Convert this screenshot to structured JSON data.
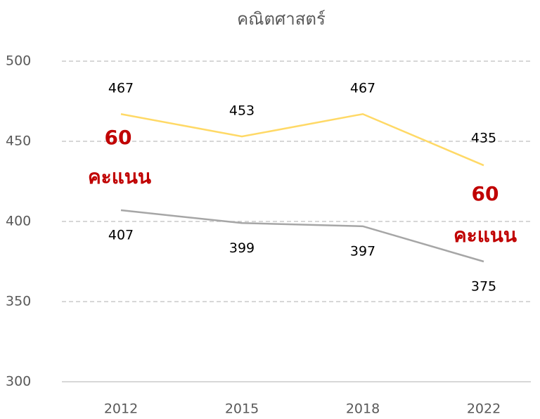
{
  "chart_data": {
    "type": "line",
    "title": "คณิตศาสตร์",
    "categories": [
      "2012",
      "2015",
      "2018",
      "2022"
    ],
    "series": [
      {
        "color": "#ffd966",
        "values": [
          467,
          453,
          467,
          435
        ]
      },
      {
        "color": "#a6a6a6",
        "values": [
          407,
          399,
          397,
          375
        ]
      }
    ],
    "ylim": [
      300,
      500
    ],
    "yticks": [
      300,
      350,
      400,
      450,
      500
    ],
    "grid": true,
    "annotations": [
      "60",
      "คะแนน",
      "60",
      "คะแนน"
    ]
  }
}
